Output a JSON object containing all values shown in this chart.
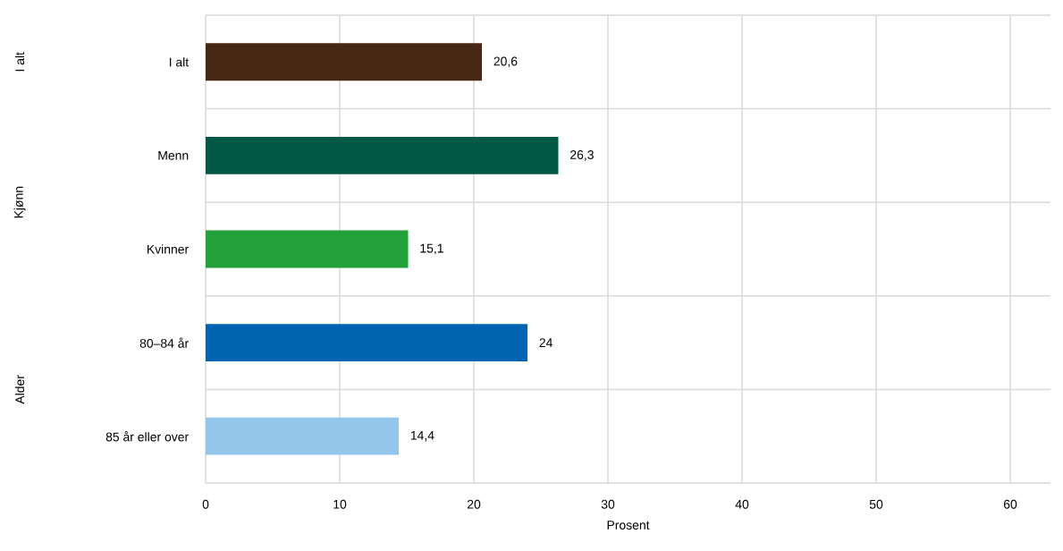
{
  "chart_data": {
    "type": "bar",
    "orientation": "horizontal",
    "xlabel": "Prosent",
    "categories": [
      "I alt",
      "Menn",
      "Kvinner",
      "80–84 år",
      "85 år eller over"
    ],
    "values": [
      20.6,
      26.3,
      15.1,
      24,
      14.4
    ],
    "colors": [
      "#472815",
      "#005845",
      "#22a03a",
      "#0064b0",
      "#93c6ea"
    ],
    "value_labels": [
      "20,6",
      "26,3",
      "15,1",
      "24",
      "14,4"
    ],
    "xlim": [
      0,
      63
    ],
    "xticks": [
      0,
      10,
      20,
      30,
      40,
      50,
      60
    ],
    "grid": true,
    "annotations": [
      "I alt",
      "Kjønn",
      "Alder"
    ]
  }
}
